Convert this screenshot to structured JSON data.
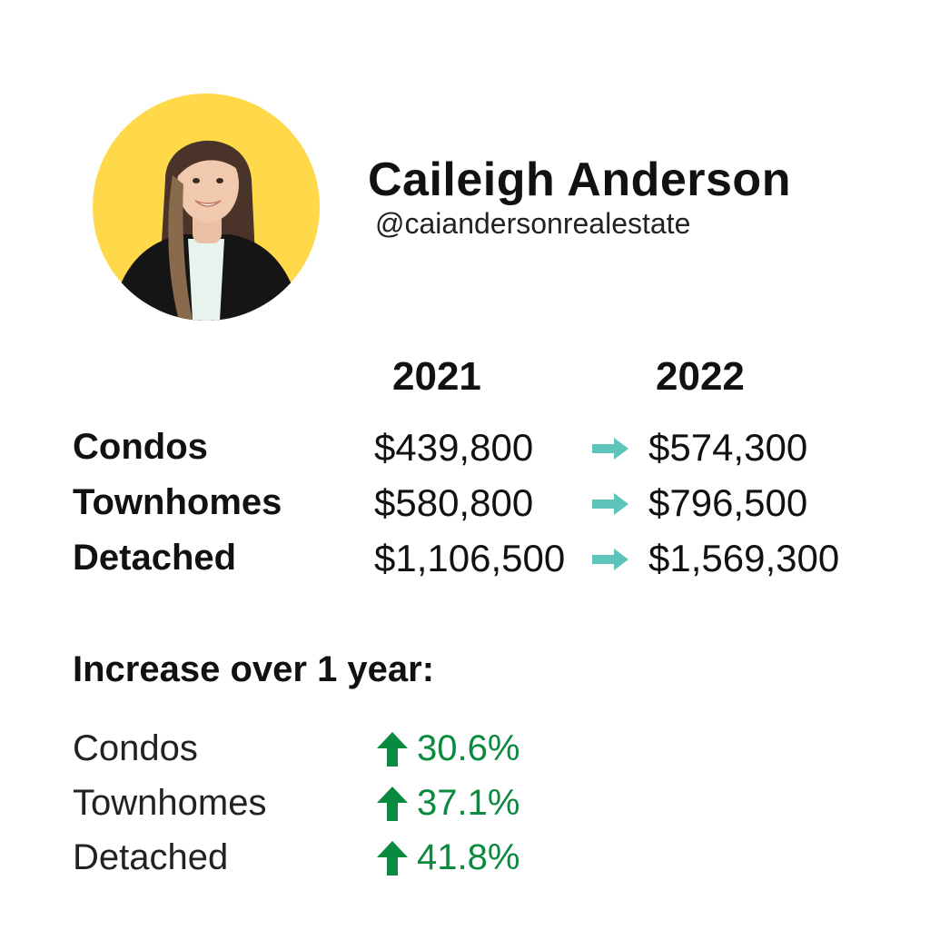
{
  "profile": {
    "name": "Caileigh Anderson",
    "handle": "@caiandersonrealestate",
    "avatar_bg": "#FFD94A"
  },
  "prices": {
    "year_from": "2021",
    "year_to": "2022",
    "arrow_color": "#5CC4B8",
    "rows": [
      {
        "label": "Condos",
        "from": "$439,800",
        "to": "$574,300"
      },
      {
        "label": "Townhomes",
        "from": "$580,800",
        "to": "$796,500"
      },
      {
        "label": "Detached",
        "from": "$1,106,500",
        "to": "$1,569,300"
      }
    ]
  },
  "increase": {
    "title": "Increase over 1 year:",
    "color": "#0A8A3E",
    "icon": "arrow-up-icon",
    "rows": [
      {
        "label": "Condos",
        "value": "30.6%"
      },
      {
        "label": "Townhomes",
        "value": "37.1%"
      },
      {
        "label": "Detached",
        "value": "41.8%"
      }
    ]
  }
}
